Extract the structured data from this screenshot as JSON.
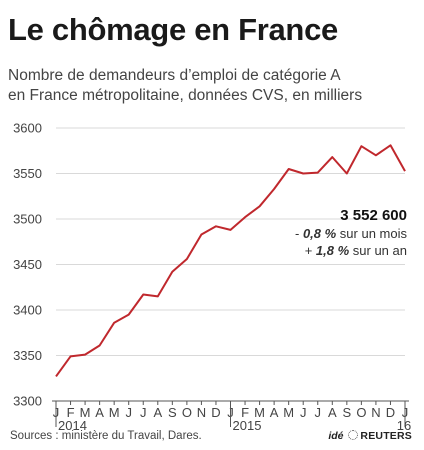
{
  "title": "Le chômage en France",
  "subtitle_line1": "Nombre de demandeurs d’emploi de catégorie A",
  "subtitle_line2": "en France métropolitaine, données CVS, en milliers",
  "annotation": {
    "value": "3 552 600",
    "line1_prefix": "- ",
    "line1_bold": "0,8 %",
    "line1_suffix": " sur un mois",
    "line2_prefix": "+ ",
    "line2_bold": "1,8 %",
    "line2_suffix": " sur un an"
  },
  "source": "Sources : ministère du Travail, Dares.",
  "credit": {
    "ide": "idé",
    "reuters": "REUTERS"
  },
  "colors": {
    "line": "#c0282d",
    "grid": "#d9d9d9",
    "axis": "#555555"
  },
  "chart_data": {
    "type": "line",
    "title": "Le chômage en France",
    "ylabel": "",
    "xlabel": "",
    "ylim": [
      3300,
      3600
    ],
    "yticks": [
      3300,
      3350,
      3400,
      3450,
      3500,
      3550,
      3600
    ],
    "grid": true,
    "month_labels": [
      "J",
      "F",
      "M",
      "A",
      "M",
      "J",
      "J",
      "A",
      "S",
      "O",
      "N",
      "D",
      "J",
      "F",
      "M",
      "A",
      "M",
      "J",
      "J",
      "A",
      "S",
      "O",
      "N",
      "D",
      "J"
    ],
    "year_labels": [
      {
        "label": "2014",
        "index": 0
      },
      {
        "label": "2015",
        "index": 12
      },
      {
        "label": "16",
        "index": 24
      }
    ],
    "x": [
      "2014-01",
      "2014-02",
      "2014-03",
      "2014-04",
      "2014-05",
      "2014-06",
      "2014-07",
      "2014-08",
      "2014-09",
      "2014-10",
      "2014-11",
      "2014-12",
      "2015-01",
      "2015-02",
      "2015-03",
      "2015-04",
      "2015-05",
      "2015-06",
      "2015-07",
      "2015-08",
      "2015-09",
      "2015-10",
      "2015-11",
      "2015-12",
      "2016-01"
    ],
    "series": [
      {
        "values": [
          3327,
          3349,
          3351,
          3361,
          3386,
          3395,
          3417,
          3415,
          3442,
          3456,
          3483,
          3492,
          3488,
          3502,
          3514,
          3533,
          3555,
          3550,
          3551,
          3568,
          3550,
          3580,
          3570,
          3581,
          3552.6
        ]
      }
    ]
  }
}
